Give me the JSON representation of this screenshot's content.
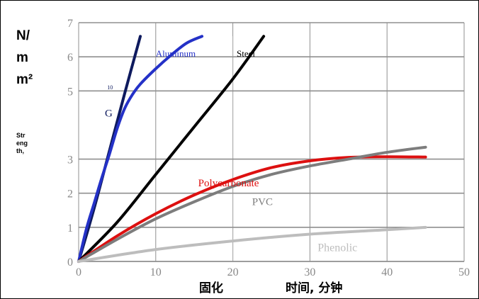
{
  "y_unit_lines": [
    "N/",
    "m",
    "m²"
  ],
  "y_label_lines": [
    "Str",
    "eng",
    "th,"
  ],
  "x_label_parts": [
    "固化",
    "时间, 分钟"
  ],
  "chart_data": {
    "type": "line",
    "title": "",
    "xlabel": "固化 时间, 分钟",
    "ylabel": "N/mm² Strength,",
    "xlim": [
      0,
      50
    ],
    "ylim": [
      0,
      7
    ],
    "grid": true,
    "x_ticks": [
      0,
      10,
      20,
      30,
      40,
      50
    ],
    "y_ticks": [
      0,
      1,
      2,
      3,
      5,
      6,
      7
    ],
    "y_tick_labels": [
      "0",
      "1",
      "2",
      "3",
      "5",
      "6",
      "7"
    ],
    "series": [
      {
        "name": "G",
        "color": "#0e1a5e",
        "x": [
          0,
          2,
          4,
          6,
          8
        ],
        "y": [
          0,
          1.55,
          3.25,
          4.95,
          6.6
        ]
      },
      {
        "name": "Aluminum",
        "color": "#2431c7",
        "x": [
          0,
          1,
          2,
          3,
          4,
          5,
          6,
          7,
          8,
          10,
          12,
          14,
          16
        ],
        "y": [
          0,
          0.95,
          1.7,
          2.45,
          3.15,
          3.9,
          4.5,
          4.9,
          5.2,
          5.65,
          6.05,
          6.4,
          6.6
        ]
      },
      {
        "name": "Steel",
        "color": "#000000",
        "x": [
          0,
          5,
          10,
          15,
          20,
          24
        ],
        "y": [
          0,
          1.15,
          2.55,
          3.95,
          5.35,
          6.6
        ]
      },
      {
        "name": "Polycarbonate",
        "color": "#dd1010",
        "x": [
          0,
          5,
          10,
          15,
          20,
          25,
          30,
          35,
          40,
          45
        ],
        "y": [
          0,
          0.75,
          1.4,
          1.95,
          2.4,
          2.75,
          2.95,
          3.05,
          3.07,
          3.06
        ]
      },
      {
        "name": "PVC",
        "color": "#7d7d7d",
        "x": [
          0,
          5,
          10,
          15,
          20,
          25,
          30,
          35,
          40,
          45
        ],
        "y": [
          0,
          0.65,
          1.25,
          1.75,
          2.2,
          2.55,
          2.8,
          3.0,
          3.2,
          3.35
        ]
      },
      {
        "name": "Phenolic",
        "color": "#bdbdbd",
        "x": [
          0,
          10,
          20,
          30,
          40,
          45
        ],
        "y": [
          0,
          0.35,
          0.6,
          0.8,
          0.93,
          1.0
        ]
      }
    ],
    "annotations": [
      {
        "text": "G",
        "color": "#0e1a5e",
        "x": 3.4,
        "y": 4.25,
        "size": 15
      },
      {
        "text": "10",
        "color": "#0e1a5e",
        "x": 3.7,
        "y": 5.05,
        "size": 8
      },
      {
        "text": "Aluminum",
        "color": "#2431c7",
        "x": 10,
        "y": 6.0,
        "size": 13
      },
      {
        "text": "Steel",
        "color": "#000000",
        "x": 20.5,
        "y": 6.0,
        "size": 13
      },
      {
        "text": "Polycarbonate",
        "color": "#dd1010",
        "x": 15.5,
        "y": 2.2,
        "size": 15
      },
      {
        "text": "PVC",
        "color": "#7d7d7d",
        "x": 22.5,
        "y": 1.65,
        "size": 15
      },
      {
        "text": "Phenolic",
        "color": "#bdbdbd",
        "x": 31,
        "y": 0.3,
        "size": 16
      }
    ]
  }
}
